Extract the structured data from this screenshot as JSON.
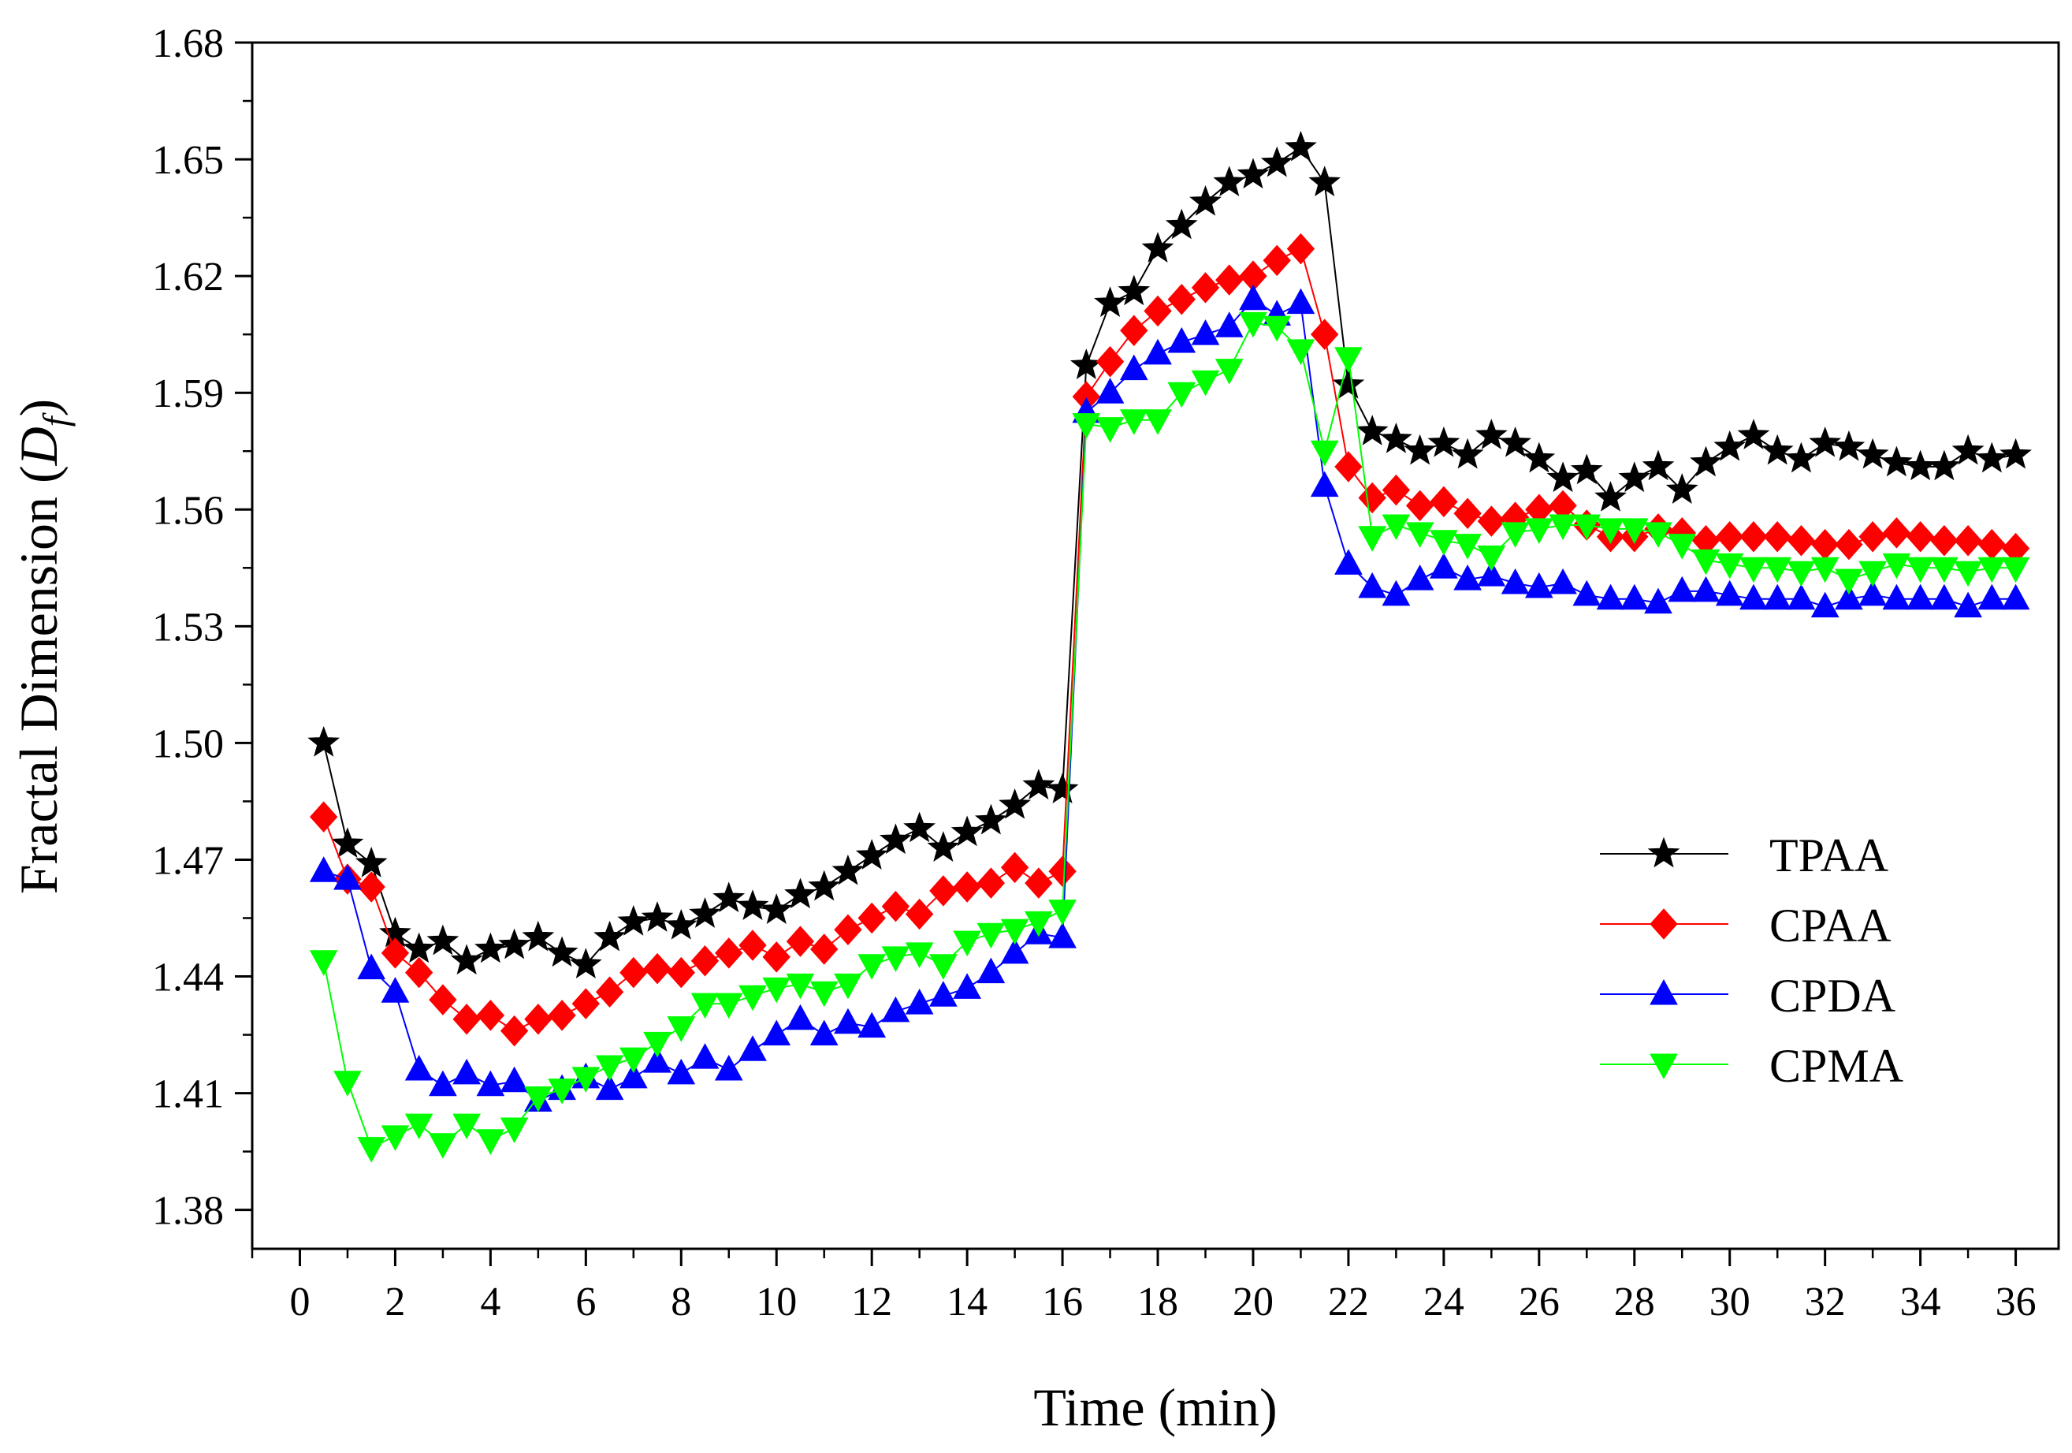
{
  "chart_data": {
    "type": "line",
    "title": "",
    "xlabel": "Time (min)",
    "ylabel_main": "Fractal Dimension (",
    "ylabel_symbol": "D",
    "ylabel_sub": "f",
    "ylabel_close": ")",
    "xlim": [
      -1.0,
      36.9
    ],
    "ylim": [
      1.37,
      1.68
    ],
    "xticks": [
      0,
      2,
      4,
      6,
      8,
      10,
      12,
      14,
      16,
      18,
      20,
      22,
      24,
      26,
      28,
      30,
      32,
      34,
      36
    ],
    "xtick_labels": [
      "0",
      "2",
      "4",
      "6",
      "8",
      "10",
      "12",
      "14",
      "16",
      "18",
      "20",
      "22",
      "24",
      "26",
      "28",
      "30",
      "32",
      "34",
      "36"
    ],
    "yticks": [
      1.38,
      1.41,
      1.44,
      1.47,
      1.5,
      1.53,
      1.56,
      1.59,
      1.62,
      1.65,
      1.68
    ],
    "ytick_labels": [
      "1.38",
      "1.41",
      "1.44",
      "1.47",
      "1.50",
      "1.53",
      "1.56",
      "1.59",
      "1.62",
      "1.65",
      "1.68"
    ],
    "legend_position": "center-right",
    "x": [
      0.5,
      1.0,
      1.5,
      2.0,
      2.5,
      3.0,
      3.5,
      4.0,
      4.5,
      5.0,
      5.5,
      6.0,
      6.5,
      7.0,
      7.5,
      8.0,
      8.5,
      9.0,
      9.5,
      10.0,
      10.5,
      11.0,
      11.5,
      12.0,
      12.5,
      13.0,
      13.5,
      14.0,
      14.5,
      15.0,
      15.5,
      16.0,
      16.5,
      17.0,
      17.5,
      18.0,
      18.5,
      19.0,
      19.5,
      20.0,
      20.5,
      21.0,
      21.5,
      22.0,
      22.5,
      23.0,
      23.5,
      24.0,
      24.5,
      25.0,
      25.5,
      26.0,
      26.5,
      27.0,
      27.5,
      28.0,
      28.5,
      29.0,
      29.5,
      30.0,
      30.5,
      31.0,
      31.5,
      32.0,
      32.5,
      33.0,
      33.5,
      34.0,
      34.5,
      35.0,
      35.5,
      36.0
    ],
    "series": [
      {
        "name": "TPAA",
        "color": "#000000",
        "marker": "star",
        "values": [
          1.5,
          1.474,
          1.469,
          1.451,
          1.447,
          1.449,
          1.444,
          1.447,
          1.448,
          1.45,
          1.446,
          1.443,
          1.45,
          1.454,
          1.455,
          1.453,
          1.456,
          1.46,
          1.458,
          1.457,
          1.461,
          1.463,
          1.467,
          1.471,
          1.475,
          1.478,
          1.473,
          1.477,
          1.48,
          1.484,
          1.489,
          1.488,
          1.597,
          1.613,
          1.616,
          1.627,
          1.633,
          1.639,
          1.644,
          1.646,
          1.649,
          1.653,
          1.644,
          1.592,
          1.58,
          1.578,
          1.575,
          1.577,
          1.574,
          1.579,
          1.577,
          1.573,
          1.568,
          1.57,
          1.563,
          1.568,
          1.571,
          1.565,
          1.572,
          1.576,
          1.579,
          1.575,
          1.573,
          1.577,
          1.576,
          1.574,
          1.572,
          1.571,
          1.571,
          1.575,
          1.573,
          1.574
        ]
      },
      {
        "name": "CPAA",
        "color": "#ff0000",
        "marker": "diamond",
        "values": [
          1.481,
          1.465,
          1.463,
          1.446,
          1.441,
          1.434,
          1.429,
          1.43,
          1.426,
          1.429,
          1.43,
          1.433,
          1.436,
          1.441,
          1.442,
          1.441,
          1.444,
          1.446,
          1.448,
          1.445,
          1.449,
          1.447,
          1.452,
          1.455,
          1.458,
          1.456,
          1.462,
          1.463,
          1.464,
          1.468,
          1.464,
          1.467,
          1.589,
          1.598,
          1.606,
          1.611,
          1.614,
          1.617,
          1.619,
          1.62,
          1.624,
          1.627,
          1.605,
          1.571,
          1.563,
          1.565,
          1.561,
          1.562,
          1.559,
          1.557,
          1.558,
          1.56,
          1.561,
          1.556,
          1.553,
          1.553,
          1.555,
          1.554,
          1.552,
          1.553,
          1.553,
          1.553,
          1.552,
          1.551,
          1.551,
          1.553,
          1.554,
          1.553,
          1.552,
          1.552,
          1.551,
          1.55
        ]
      },
      {
        "name": "CPDA",
        "color": "#0000ff",
        "marker": "triangle-up",
        "values": [
          1.467,
          1.465,
          1.442,
          1.436,
          1.416,
          1.412,
          1.415,
          1.412,
          1.413,
          1.408,
          1.411,
          1.414,
          1.411,
          1.414,
          1.418,
          1.415,
          1.419,
          1.416,
          1.421,
          1.425,
          1.429,
          1.425,
          1.428,
          1.427,
          1.431,
          1.433,
          1.435,
          1.437,
          1.441,
          1.446,
          1.451,
          1.45,
          1.585,
          1.59,
          1.596,
          1.6,
          1.603,
          1.605,
          1.607,
          1.614,
          1.61,
          1.613,
          1.566,
          1.546,
          1.54,
          1.538,
          1.542,
          1.545,
          1.542,
          1.543,
          1.541,
          1.54,
          1.541,
          1.538,
          1.537,
          1.537,
          1.536,
          1.539,
          1.539,
          1.538,
          1.537,
          1.537,
          1.537,
          1.535,
          1.537,
          1.538,
          1.537,
          1.537,
          1.537,
          1.535,
          1.537,
          1.537
        ]
      },
      {
        "name": "CPMA",
        "color": "#00ff00",
        "marker": "triangle-down",
        "values": [
          1.444,
          1.413,
          1.396,
          1.399,
          1.402,
          1.397,
          1.402,
          1.398,
          1.401,
          1.409,
          1.411,
          1.414,
          1.417,
          1.419,
          1.423,
          1.427,
          1.433,
          1.433,
          1.435,
          1.437,
          1.438,
          1.436,
          1.438,
          1.443,
          1.445,
          1.446,
          1.443,
          1.449,
          1.451,
          1.452,
          1.454,
          1.457,
          1.582,
          1.581,
          1.583,
          1.583,
          1.59,
          1.593,
          1.596,
          1.608,
          1.607,
          1.601,
          1.575,
          1.599,
          1.553,
          1.556,
          1.554,
          1.552,
          1.551,
          1.548,
          1.554,
          1.555,
          1.556,
          1.556,
          1.555,
          1.555,
          1.554,
          1.551,
          1.547,
          1.546,
          1.545,
          1.545,
          1.544,
          1.545,
          1.542,
          1.544,
          1.546,
          1.545,
          1.545,
          1.544,
          1.545,
          1.545
        ]
      }
    ]
  }
}
